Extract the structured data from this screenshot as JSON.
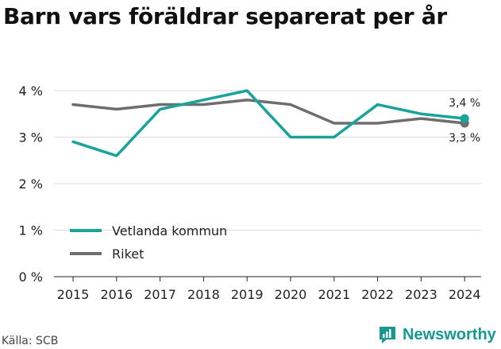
{
  "title": "Barn vars föräldrar separerat per år",
  "source": "Källa: SCB",
  "brand": {
    "name": "Newsworthy",
    "icon": "newsworthy-logo-icon",
    "color": "#17998f"
  },
  "chart_data": {
    "type": "line",
    "x": [
      "2015",
      "2016",
      "2017",
      "2018",
      "2019",
      "2020",
      "2021",
      "2022",
      "2023",
      "2024"
    ],
    "series": [
      {
        "name": "Vetlanda kommun",
        "color": "#1aa39a",
        "values": [
          2.9,
          2.6,
          3.6,
          3.8,
          4.0,
          3.0,
          3.0,
          3.7,
          3.5,
          3.4
        ]
      },
      {
        "name": "Riket",
        "color": "#6e6e6e",
        "values": [
          3.7,
          3.6,
          3.7,
          3.7,
          3.8,
          3.7,
          3.3,
          3.3,
          3.4,
          3.3
        ]
      }
    ],
    "y_ticks": [
      "0 %",
      "1 %",
      "2 %",
      "3 %",
      "4 %"
    ],
    "y_tick_values": [
      0,
      1,
      2,
      3,
      4
    ],
    "ylim": [
      0,
      4
    ],
    "end_labels": [
      "3,4 %",
      "3,3 %"
    ],
    "grid": true,
    "legend": "bottom-left"
  }
}
